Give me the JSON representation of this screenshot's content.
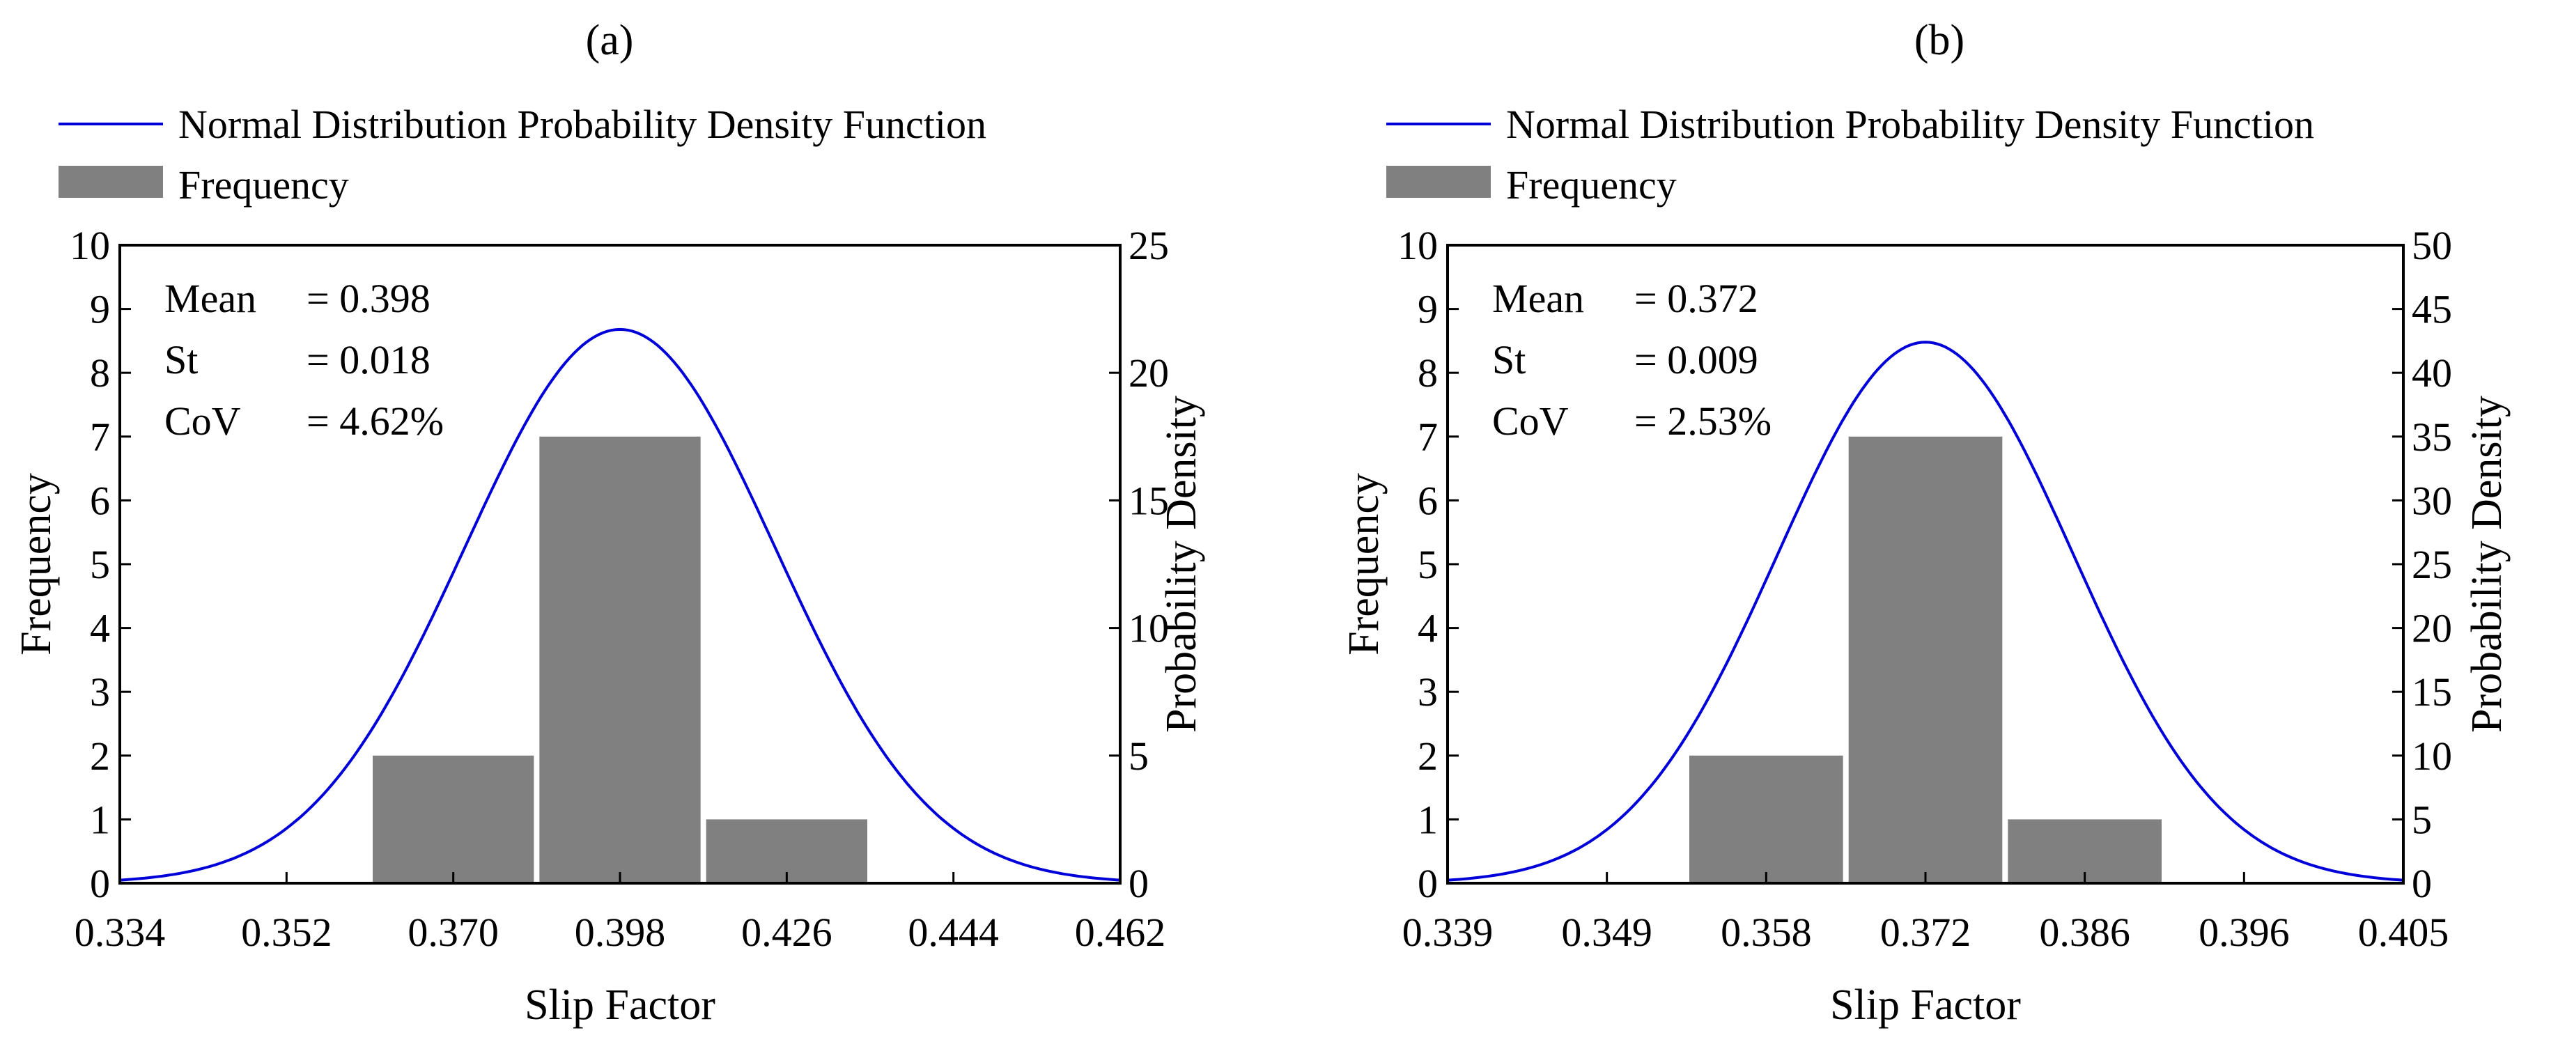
{
  "colors": {
    "bar": "#808080",
    "curve": "#0000d8",
    "axis": "#000000"
  },
  "chart_data": [
    {
      "type": "bar",
      "panel_label": "(a)",
      "title": "",
      "xlabel": "Slip Factor",
      "ylabel": "Frequency",
      "y2label": "Probability Density",
      "legend": {
        "placement": "top-left, above plot",
        "curve": "Normal Distribution Probability Density Function",
        "bars": "Frequency"
      },
      "xticks": [
        "0.334",
        "0.352",
        "0.370",
        "0.398",
        "0.426",
        "0.444",
        "0.462"
      ],
      "ylim": [
        0,
        10
      ],
      "yticks": [
        "0",
        "1",
        "2",
        "3",
        "4",
        "5",
        "6",
        "7",
        "8",
        "9",
        "10"
      ],
      "y2lim": [
        0,
        25
      ],
      "y2ticks": [
        "0",
        "5",
        "10",
        "15",
        "20",
        "25"
      ],
      "bins": [
        {
          "start_tick": 1.5,
          "end_tick": 2.5,
          "value": 2
        },
        {
          "start_tick": 2.5,
          "end_tick": 3.5,
          "value": 7
        },
        {
          "start_tick": 3.5,
          "end_tick": 4.5,
          "value": 1
        }
      ],
      "curve": {
        "mean_tick": 3.0,
        "sd_ticks": 0.93,
        "peak_density": 21.7
      },
      "stats": [
        {
          "label": "Mean",
          "value": "= 0.398"
        },
        {
          "label": "St",
          "value": "= 0.018"
        },
        {
          "label": "CoV",
          "value": "= 4.62%"
        }
      ]
    },
    {
      "type": "bar",
      "panel_label": "(b)",
      "title": "",
      "xlabel": "Slip Factor",
      "ylabel": "Frequency",
      "y2label": "Probability Density",
      "legend": {
        "placement": "top-left, above plot",
        "curve": "Normal Distribution Probability Density Function",
        "bars": "Frequency"
      },
      "xticks": [
        "0.339",
        "0.349",
        "0.358",
        "0.372",
        "0.386",
        "0.396",
        "0.405"
      ],
      "ylim": [
        0,
        10
      ],
      "yticks": [
        "0",
        "1",
        "2",
        "3",
        "4",
        "5",
        "6",
        "7",
        "8",
        "9",
        "10"
      ],
      "y2lim": [
        0,
        50
      ],
      "y2ticks": [
        "0",
        "5",
        "10",
        "15",
        "20",
        "25",
        "30",
        "35",
        "40",
        "45",
        "50"
      ],
      "bins": [
        {
          "start_tick": 1.5,
          "end_tick": 2.5,
          "value": 2
        },
        {
          "start_tick": 2.5,
          "end_tick": 3.5,
          "value": 7
        },
        {
          "start_tick": 3.5,
          "end_tick": 4.5,
          "value": 1
        }
      ],
      "curve": {
        "mean_tick": 3.0,
        "sd_ticks": 0.93,
        "peak_density": 42.4
      },
      "stats": [
        {
          "label": "Mean",
          "value": "= 0.372"
        },
        {
          "label": "St",
          "value": "= 0.009"
        },
        {
          "label": "CoV",
          "value": "= 2.53%"
        }
      ]
    }
  ]
}
